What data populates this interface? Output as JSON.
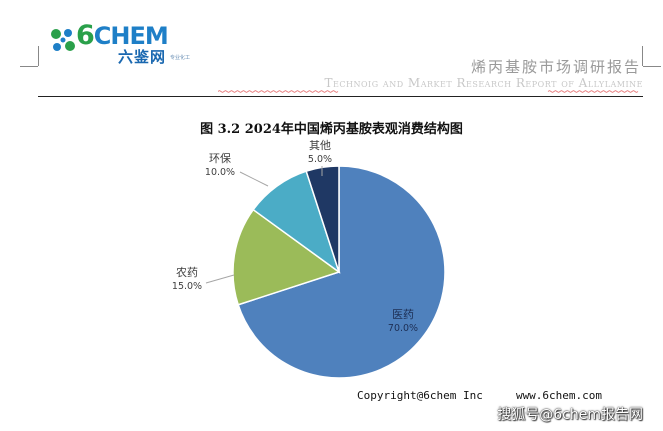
{
  "header": {
    "logo_six": "6",
    "logo_text": "CHEM",
    "logo_cn": "六鉴网",
    "logo_sub": "专业化工",
    "report_title_cn": "烯丙基胺市场调研报告",
    "report_title_en": "Technoig and Market Research Report of Allylamine"
  },
  "chart_data": {
    "type": "pie",
    "title": "图 3.2 2024年中国烯丙基胺表观消费结构图",
    "slices": [
      {
        "label": "医药",
        "value": 70.0,
        "pct_label": "70.0%",
        "color": "#4f81bd"
      },
      {
        "label": "农药",
        "value": 15.0,
        "pct_label": "15.0%",
        "color": "#9bbb59"
      },
      {
        "label": "环保",
        "value": 10.0,
        "pct_label": "10.0%",
        "color": "#4bacc6"
      },
      {
        "label": "其他",
        "value": 5.0,
        "pct_label": "5.0%",
        "color": "#1f3864"
      }
    ]
  },
  "footer": {
    "copyright": "Copyright@6chem Inc     www.6chem.com",
    "watermark": "搜狐号@6chem报告网"
  }
}
